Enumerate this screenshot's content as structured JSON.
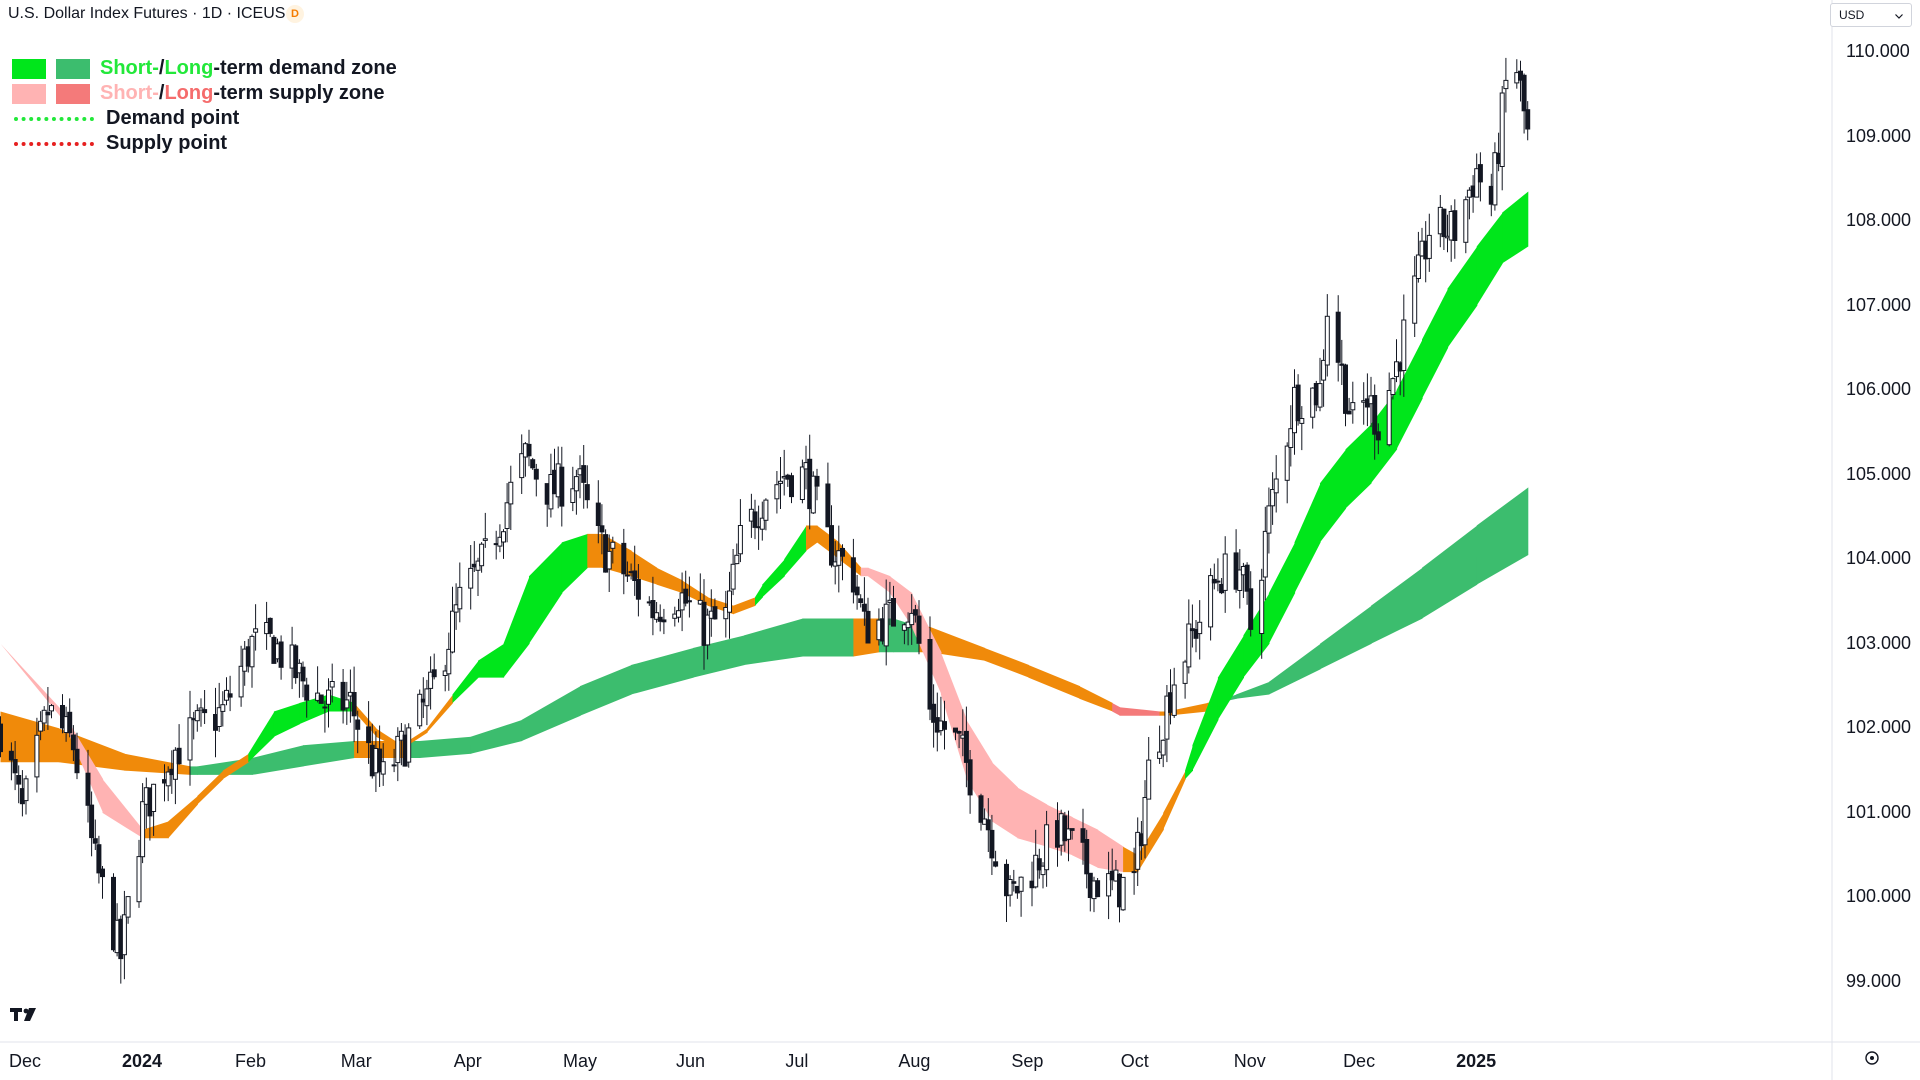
{
  "header": {
    "title": "U.S. Dollar Index Futures · 1D · ICEUS",
    "badge": "D",
    "currency": "USD",
    "currency_icon": "chevron-down-icon"
  },
  "legend": {
    "items": [
      {
        "parts": [
          {
            "text": "Short-",
            "color": "#22e83a"
          },
          {
            "text": " / ",
            "color": "#131722"
          },
          {
            "text": "Long",
            "color": "#22e83a"
          },
          {
            "text": "-term demand zone",
            "color": "#131722"
          }
        ],
        "swatches": [
          "#00e61b",
          "#3cbd6e"
        ]
      },
      {
        "parts": [
          {
            "text": "Short-",
            "color": "#ffb3b3"
          },
          {
            "text": " / ",
            "color": "#131722"
          },
          {
            "text": "Long",
            "color": "#f56c6c"
          },
          {
            "text": "-term supply zone",
            "color": "#131722"
          }
        ],
        "swatches": [
          "#ffb3b3",
          "#f47a7a"
        ]
      },
      {
        "parts": [
          {
            "text": "Demand point",
            "color": "#131722"
          }
        ],
        "line": "#22e83a"
      },
      {
        "parts": [
          {
            "text": "Supply point",
            "color": "#131722"
          }
        ],
        "line": "#e62020"
      }
    ]
  },
  "colors": {
    "short_demand": "#00e61b",
    "long_demand": "#3cbd6e",
    "short_supply": "#ffb3b3",
    "long_supply": "#f47a7a",
    "neutral": "#f08a0a",
    "candle": "#131722"
  },
  "chart_data": {
    "type": "candlestick",
    "title": "U.S. Dollar Index Futures · 1D · ICEUS",
    "y_axis": {
      "ticks": [
        "99.000",
        "100.000",
        "101.000",
        "102.000",
        "103.000",
        "104.000",
        "105.000",
        "106.000",
        "107.000",
        "108.000",
        "109.000",
        "110.000"
      ],
      "range": [
        98.4,
        110.5
      ]
    },
    "x_axis": {
      "ticks": [
        {
          "label": "Dec",
          "bold": false
        },
        {
          "label": "2024",
          "bold": true
        },
        {
          "label": "Feb",
          "bold": false
        },
        {
          "label": "Mar",
          "bold": false
        },
        {
          "label": "Apr",
          "bold": false
        },
        {
          "label": "May",
          "bold": false
        },
        {
          "label": "Jun",
          "bold": false
        },
        {
          "label": "Jul",
          "bold": false
        },
        {
          "label": "Aug",
          "bold": false
        },
        {
          "label": "Sep",
          "bold": false
        },
        {
          "label": "Oct",
          "bold": false
        },
        {
          "label": "Nov",
          "bold": false
        },
        {
          "label": "Dec",
          "bold": false
        },
        {
          "label": "2025",
          "bold": true
        }
      ]
    },
    "price_path": [
      [
        "2023-11-24",
        102.0
      ],
      [
        "2023-11-30",
        101.0
      ],
      [
        "2023-12-07",
        102.2
      ],
      [
        "2023-12-14",
        101.8
      ],
      [
        "2023-12-20",
        100.4
      ],
      [
        "2023-12-27",
        99.3
      ],
      [
        "2024-01-02",
        101.0
      ],
      [
        "2024-01-10",
        101.7
      ],
      [
        "2024-01-17",
        102.0
      ],
      [
        "2024-01-24",
        102.2
      ],
      [
        "2024-02-01",
        103.0
      ],
      [
        "2024-02-07",
        103.0
      ],
      [
        "2024-02-14",
        102.6
      ],
      [
        "2024-02-21",
        102.3
      ],
      [
        "2024-02-28",
        102.3
      ],
      [
        "2024-03-05",
        101.6
      ],
      [
        "2024-03-08",
        101.4
      ],
      [
        "2024-03-15",
        101.9
      ],
      [
        "2024-03-22",
        102.5
      ],
      [
        "2024-03-29",
        103.5
      ],
      [
        "2024-04-05",
        104.0
      ],
      [
        "2024-04-12",
        104.8
      ],
      [
        "2024-04-16",
        105.2
      ],
      [
        "2024-04-23",
        104.8
      ],
      [
        "2024-04-30",
        105.0
      ],
      [
        "2024-05-06",
        104.2
      ],
      [
        "2024-05-14",
        103.8
      ],
      [
        "2024-05-21",
        103.4
      ],
      [
        "2024-05-28",
        103.6
      ],
      [
        "2024-06-04",
        103.2
      ],
      [
        "2024-06-10",
        103.3
      ],
      [
        "2024-06-14",
        104.2
      ],
      [
        "2024-06-21",
        104.8
      ],
      [
        "2024-06-26",
        105.0
      ],
      [
        "2024-07-02",
        105.0
      ],
      [
        "2024-07-08",
        104.2
      ],
      [
        "2024-07-15",
        103.8
      ],
      [
        "2024-07-18",
        103.2
      ],
      [
        "2024-07-25",
        103.3
      ],
      [
        "2024-07-31",
        103.5
      ],
      [
        "2024-08-05",
        102.2
      ],
      [
        "2024-08-13",
        101.8
      ],
      [
        "2024-08-20",
        101.0
      ],
      [
        "2024-08-27",
        100.0
      ],
      [
        "2024-09-03",
        100.4
      ],
      [
        "2024-09-09",
        100.8
      ],
      [
        "2024-09-13",
        100.6
      ],
      [
        "2024-09-19",
        100.2
      ],
      [
        "2024-09-25",
        100.1
      ],
      [
        "2024-09-30",
        100.2
      ],
      [
        "2024-10-04",
        101.5
      ],
      [
        "2024-10-11",
        102.6
      ],
      [
        "2024-10-18",
        103.3
      ],
      [
        "2024-10-23",
        103.8
      ],
      [
        "2024-10-29",
        103.9
      ],
      [
        "2024-11-01",
        103.2
      ],
      [
        "2024-11-06",
        104.5
      ],
      [
        "2024-11-13",
        105.9
      ],
      [
        "2024-11-20",
        106.0
      ],
      [
        "2024-11-22",
        107.0
      ],
      [
        "2024-11-29",
        105.6
      ],
      [
        "2024-12-03",
        105.9
      ],
      [
        "2024-12-06",
        105.6
      ],
      [
        "2024-12-11",
        106.3
      ],
      [
        "2024-12-18",
        107.5
      ],
      [
        "2024-12-20",
        107.9
      ],
      [
        "2024-12-27",
        107.9
      ],
      [
        "2025-01-02",
        108.6
      ],
      [
        "2025-01-06",
        108.2
      ],
      [
        "2025-01-10",
        109.6
      ],
      [
        "2025-01-13",
        109.8
      ],
      [
        "2025-01-16",
        109.0
      ]
    ],
    "short_zone": [
      [
        "2023-11-24",
        103.0,
        103.0,
        "short_supply"
      ],
      [
        "2023-12-11",
        102.2,
        102.1,
        "short_supply"
      ],
      [
        "2023-12-22",
        101.4,
        101.0,
        "short_supply"
      ],
      [
        "2024-01-02",
        100.8,
        100.7,
        "short_supply"
      ],
      [
        "2024-01-09",
        100.9,
        100.7,
        "neutral"
      ],
      [
        "2024-01-17",
        101.2,
        101.1,
        "neutral"
      ],
      [
        "2024-01-24",
        101.5,
        101.4,
        "neutral"
      ],
      [
        "2024-01-31",
        101.7,
        101.6,
        "neutral"
      ],
      [
        "2024-02-07",
        102.2,
        101.9,
        "short_demand"
      ],
      [
        "2024-02-14",
        102.3,
        102.05,
        "short_demand"
      ],
      [
        "2024-02-22",
        102.4,
        102.2,
        "short_demand"
      ],
      [
        "2024-02-29",
        102.3,
        102.2,
        "short_demand"
      ],
      [
        "2024-03-06",
        102.0,
        101.9,
        "neutral"
      ],
      [
        "2024-03-13",
        101.8,
        101.75,
        "neutral"
      ],
      [
        "2024-03-20",
        102.0,
        101.95,
        "neutral"
      ],
      [
        "2024-03-27",
        102.4,
        102.3,
        "neutral"
      ],
      [
        "2024-04-03",
        102.8,
        102.6,
        "short_demand"
      ],
      [
        "2024-04-10",
        103.0,
        102.6,
        "short_demand"
      ],
      [
        "2024-04-17",
        103.8,
        103.0,
        "short_demand"
      ],
      [
        "2024-04-26",
        104.2,
        103.6,
        "short_demand"
      ],
      [
        "2024-05-03",
        104.3,
        103.9,
        "short_demand"
      ],
      [
        "2024-05-07",
        104.3,
        103.9,
        "neutral"
      ],
      [
        "2024-05-15",
        104.1,
        103.8,
        "neutral"
      ],
      [
        "2024-05-22",
        103.9,
        103.7,
        "neutral"
      ],
      [
        "2024-05-29",
        103.75,
        103.6,
        "neutral"
      ],
      [
        "2024-06-05",
        103.55,
        103.45,
        "neutral"
      ],
      [
        "2024-06-12",
        103.45,
        103.35,
        "neutral"
      ],
      [
        "2024-06-18",
        103.55,
        103.45,
        "neutral"
      ],
      [
        "2024-06-20",
        103.7,
        103.55,
        "short_demand"
      ],
      [
        "2024-06-26",
        104.0,
        103.8,
        "short_demand"
      ],
      [
        "2024-07-02",
        104.4,
        104.1,
        "short_demand"
      ],
      [
        "2024-07-05",
        104.4,
        104.2,
        "neutral"
      ],
      [
        "2024-07-11",
        104.2,
        104.0,
        "neutral"
      ],
      [
        "2024-07-17",
        103.9,
        103.8,
        "neutral"
      ],
      [
        "2024-07-19",
        103.9,
        103.8,
        "short_supply"
      ],
      [
        "2024-07-25",
        103.8,
        103.6,
        "short_supply"
      ],
      [
        "2024-07-31",
        103.6,
        103.2,
        "short_supply"
      ],
      [
        "2024-08-08",
        102.9,
        102.4,
        "short_supply"
      ],
      [
        "2024-08-15",
        102.1,
        101.4,
        "short_supply"
      ],
      [
        "2024-08-22",
        101.6,
        100.9,
        "short_supply"
      ],
      [
        "2024-08-29",
        101.3,
        100.7,
        "short_supply"
      ],
      [
        "2024-09-06",
        101.1,
        100.6,
        "short_supply"
      ],
      [
        "2024-09-13",
        100.95,
        100.5,
        "short_supply"
      ],
      [
        "2024-09-20",
        100.8,
        100.35,
        "short_supply"
      ],
      [
        "2024-09-27",
        100.6,
        100.3,
        "short_supply"
      ],
      [
        "2024-10-01",
        100.5,
        100.3,
        "neutral"
      ],
      [
        "2024-10-08",
        101.0,
        100.8,
        "neutral"
      ],
      [
        "2024-10-14",
        101.5,
        101.4,
        "neutral"
      ],
      [
        "2024-10-16",
        101.8,
        101.5,
        "short_demand"
      ],
      [
        "2024-10-23",
        102.6,
        102.1,
        "short_demand"
      ],
      [
        "2024-10-30",
        103.1,
        102.6,
        "short_demand"
      ],
      [
        "2024-11-06",
        103.6,
        103.0,
        "short_demand"
      ],
      [
        "2024-11-13",
        104.2,
        103.6,
        "short_demand"
      ],
      [
        "2024-11-20",
        104.9,
        104.2,
        "short_demand"
      ],
      [
        "2024-11-27",
        105.3,
        104.6,
        "short_demand"
      ],
      [
        "2024-12-04",
        105.6,
        104.9,
        "short_demand"
      ],
      [
        "2024-12-11",
        106.0,
        105.3,
        "short_demand"
      ],
      [
        "2024-12-18",
        106.6,
        105.9,
        "short_demand"
      ],
      [
        "2024-12-25",
        107.2,
        106.5,
        "short_demand"
      ],
      [
        "2025-01-02",
        107.7,
        107.0,
        "short_demand"
      ],
      [
        "2025-01-09",
        108.1,
        107.5,
        "short_demand"
      ],
      [
        "2025-01-16",
        108.35,
        107.7,
        "short_demand"
      ]
    ],
    "long_zone": [
      [
        "2023-11-24",
        102.2,
        101.6,
        "neutral"
      ],
      [
        "2023-12-10",
        102.0,
        101.6,
        "neutral"
      ],
      [
        "2023-12-28",
        101.7,
        101.5,
        "neutral"
      ],
      [
        "2024-01-15",
        101.55,
        101.45,
        "neutral"
      ],
      [
        "2024-01-17",
        101.55,
        101.45,
        "long_demand"
      ],
      [
        "2024-02-01",
        101.65,
        101.45,
        "long_demand"
      ],
      [
        "2024-02-15",
        101.8,
        101.55,
        "long_demand"
      ],
      [
        "2024-02-29",
        101.85,
        101.65,
        "long_demand"
      ],
      [
        "2024-03-04",
        101.85,
        101.65,
        "neutral"
      ],
      [
        "2024-03-15",
        101.85,
        101.65,
        "neutral"
      ],
      [
        "2024-03-18",
        101.85,
        101.65,
        "long_demand"
      ],
      [
        "2024-04-01",
        101.9,
        101.7,
        "long_demand"
      ],
      [
        "2024-04-15",
        102.1,
        101.85,
        "long_demand"
      ],
      [
        "2024-05-01",
        102.5,
        102.15,
        "long_demand"
      ],
      [
        "2024-05-15",
        102.75,
        102.4,
        "long_demand"
      ],
      [
        "2024-06-01",
        102.95,
        102.6,
        "long_demand"
      ],
      [
        "2024-06-15",
        103.1,
        102.75,
        "long_demand"
      ],
      [
        "2024-07-01",
        103.3,
        102.85,
        "long_demand"
      ],
      [
        "2024-07-15",
        103.3,
        102.85,
        "long_demand"
      ],
      [
        "2024-07-22",
        103.3,
        102.9,
        "neutral"
      ],
      [
        "2024-07-26",
        103.3,
        102.9,
        "long_demand"
      ],
      [
        "2024-08-02",
        103.2,
        102.9,
        "long_demand"
      ],
      [
        "2024-08-05",
        103.2,
        102.9,
        "neutral"
      ],
      [
        "2024-08-20",
        102.95,
        102.8,
        "neutral"
      ],
      [
        "2024-09-01",
        102.75,
        102.6,
        "neutral"
      ],
      [
        "2024-09-15",
        102.5,
        102.35,
        "neutral"
      ],
      [
        "2024-09-24",
        102.3,
        102.2,
        "neutral"
      ],
      [
        "2024-09-26",
        102.25,
        102.15,
        "long_supply"
      ],
      [
        "2024-10-07",
        102.2,
        102.15,
        "long_supply"
      ],
      [
        "2024-10-09",
        102.2,
        102.15,
        "neutral"
      ],
      [
        "2024-10-20",
        102.3,
        102.2,
        "neutral"
      ],
      [
        "2024-10-26",
        102.37,
        102.33,
        "neutral"
      ],
      [
        "2024-10-28",
        102.4,
        102.35,
        "long_demand"
      ],
      [
        "2024-11-06",
        102.55,
        102.4,
        "long_demand"
      ],
      [
        "2024-11-20",
        103.0,
        102.7,
        "long_demand"
      ],
      [
        "2024-12-04",
        103.45,
        103.0,
        "long_demand"
      ],
      [
        "2024-12-18",
        103.9,
        103.3,
        "long_demand"
      ],
      [
        "2025-01-02",
        104.4,
        103.7,
        "long_demand"
      ],
      [
        "2025-01-16",
        104.85,
        104.05,
        "long_demand"
      ]
    ]
  }
}
